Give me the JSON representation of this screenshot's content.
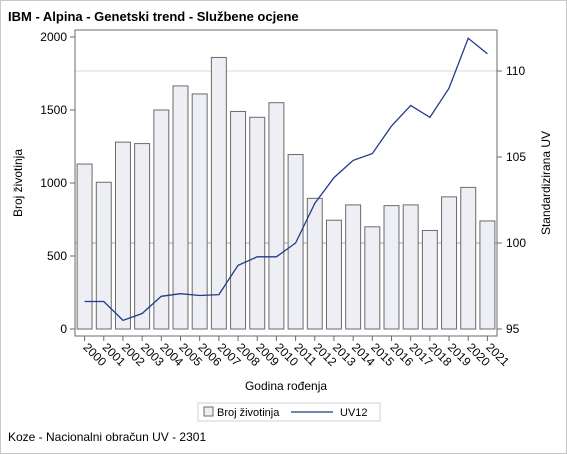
{
  "title": "IBM - Alpina - Genetski trend - Službene ocjene",
  "footnote": "Koze - Nacionalni obračun UV - 2301",
  "chart_data": {
    "type": "bar",
    "categories": [
      "2000",
      "2001",
      "2002",
      "2003",
      "2004",
      "2005",
      "2006",
      "2007",
      "2008",
      "2009",
      "2010",
      "2011",
      "2012",
      "2013",
      "2014",
      "2015",
      "2016",
      "2017",
      "2018",
      "2019",
      "2020",
      "2021"
    ],
    "series": [
      {
        "name": "Broj životinja",
        "type": "bar",
        "axis": "left",
        "values": [
          1130,
          1005,
          1280,
          1270,
          1500,
          1665,
          1610,
          1860,
          1490,
          1450,
          1550,
          1195,
          895,
          745,
          850,
          700,
          845,
          850,
          675,
          905,
          970,
          740
        ]
      },
      {
        "name": "UV12",
        "type": "line",
        "axis": "right",
        "values": [
          96.6,
          96.6,
          95.5,
          95.9,
          96.9,
          97.05,
          96.95,
          97.0,
          98.7,
          99.2,
          99.2,
          100.0,
          102.3,
          103.8,
          104.8,
          105.2,
          106.8,
          108.0,
          107.3,
          109.0,
          111.9,
          111.0
        ]
      }
    ],
    "xlabel": "Godina rođenja",
    "ylabel": "Broj životinja",
    "y2label": "Standardizirana UV",
    "ylim": [
      0,
      2000
    ],
    "yticks": [
      0,
      500,
      1000,
      1500,
      2000
    ],
    "y2lim": [
      95,
      112
    ],
    "y2ticks": [
      95,
      100,
      105,
      110
    ],
    "reference_lines": [
      {
        "axis": "right",
        "value": 100
      },
      {
        "axis": "right",
        "value": 110
      }
    ],
    "legend_position": "bottom",
    "colors": {
      "bar_fill": "#edeff4",
      "bar_stroke": "#6b6b6b",
      "line": "#1f3b8a",
      "refline_strong": "#a8a8a8",
      "refline_light": "#d8d8d8",
      "axis": "#6b6b6b"
    }
  }
}
